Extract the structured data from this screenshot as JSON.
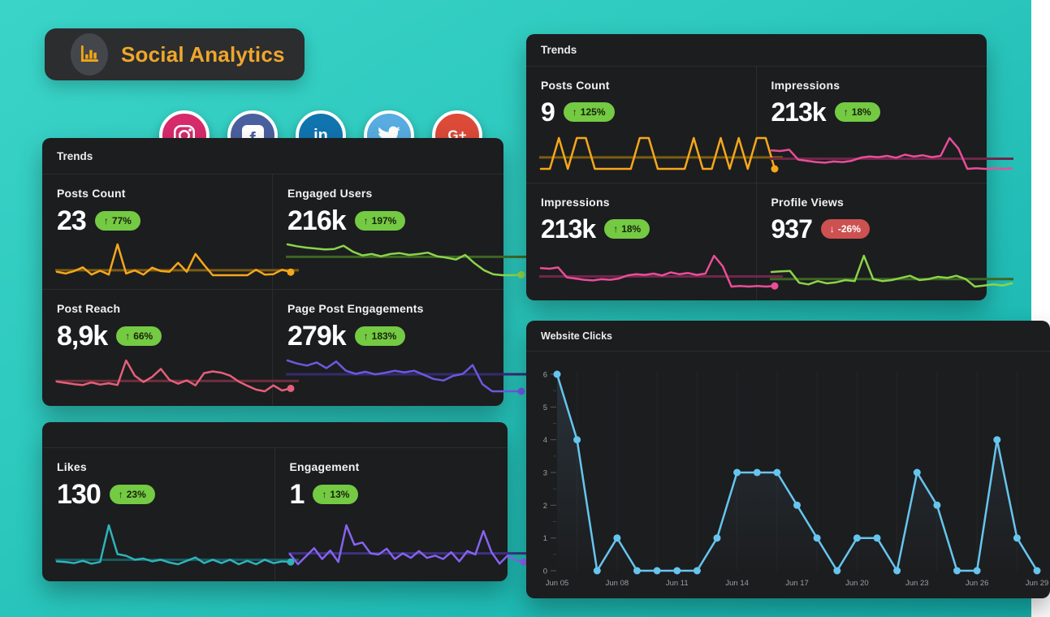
{
  "logo": {
    "title": "Social Analytics"
  },
  "social": {
    "instagram_color": "#d62a6b",
    "facebook_color": "#4a5f9e",
    "linkedin_color": "#1074af",
    "twitter_color": "#58ace0",
    "googleplus_color": "#dc4a38",
    "facebook_glyph": "f",
    "linkedin_glyph": "in",
    "googleplus_glyph": "G+"
  },
  "panels": {
    "left_trends": {
      "title": "Trends",
      "cards": [
        {
          "title": "Posts Count",
          "value": "23",
          "change": "77%",
          "direction": "up",
          "color": "#f6a71b",
          "base": "#7d5c12",
          "dot": true,
          "spark": [
            2,
            1.5,
            2.2,
            3.3,
            1.2,
            2.3,
            1.2,
            10,
            1.5,
            2.4,
            1.2,
            3.2,
            2.2,
            2,
            4.6,
            2,
            7.2,
            4,
            1,
            1,
            1,
            1,
            1,
            2.6,
            1.2,
            1.3,
            2.6,
            1.9
          ]
        },
        {
          "title": "Engaged Users",
          "value": "216k",
          "change": "197%",
          "direction": "up",
          "color": "#8bd44a",
          "base": "#3d6623",
          "dot": true,
          "spark": [
            8,
            7.6,
            7.3,
            7.1,
            6.9,
            7,
            7.7,
            6.4,
            5.6,
            5.9,
            5.4,
            5.9,
            6.1,
            5.7,
            5.9,
            6.2,
            5.4,
            5.1,
            4.7,
            5.7,
            3.9,
            2.4,
            1.5,
            1.3,
            1.3,
            1.4
          ]
        },
        {
          "title": "Post Reach",
          "value": "8,9k",
          "change": "66%",
          "direction": "up",
          "color": "#e4607a",
          "base": "#6e2f3c",
          "dot": true,
          "spark": [
            3,
            2.7,
            2.4,
            2.2,
            2.8,
            2.3,
            2.6,
            2.2,
            8,
            4.4,
            2.9,
            4.1,
            6,
            3.4,
            2.5,
            3.3,
            2.1,
            5,
            5.4,
            5.1,
            4.4,
            3,
            2,
            1.1,
            0.7,
            2.1,
            0.9,
            1.4
          ]
        },
        {
          "title": "Page Post Engagements",
          "value": "279k",
          "change": "183%",
          "direction": "up",
          "color": "#6e57de",
          "base": "#352a6e",
          "dot": true,
          "spark": [
            7,
            6.4,
            6,
            6.6,
            5.5,
            6.8,
            5,
            4.4,
            4.8,
            4.3,
            4.6,
            5,
            4.7,
            5,
            4.2,
            3.4,
            3.1,
            4,
            4.4,
            6.1,
            2.4,
            1,
            1,
            1,
            1
          ]
        }
      ]
    },
    "bottom_left": {
      "cards": [
        {
          "title": "Likes",
          "value": "130",
          "change": "23%",
          "direction": "up",
          "color": "#2fb3b9",
          "base": "#175a5e",
          "dot": true,
          "spark": [
            1.6,
            1.5,
            1.3,
            1.7,
            1.2,
            1.5,
            8,
            2.9,
            2.6,
            1.9,
            2.1,
            1.6,
            1.9,
            1.4,
            1.1,
            1.7,
            2.3,
            1.3,
            1.9,
            1.3,
            1.9,
            1.1,
            1.7,
            1.1,
            1.9,
            1.3,
            1.6,
            1.5
          ]
        },
        {
          "title": "Engagement",
          "value": "1",
          "change": "13%",
          "direction": "up",
          "color": "#8763ef",
          "base": "#3e3180",
          "dot": true,
          "spark": [
            3,
            1.2,
            2.6,
            4,
            2.1,
            3.6,
            1.6,
            8,
            4.6,
            5,
            3.1,
            2.9,
            3.9,
            2.1,
            3.1,
            2.3,
            3.5,
            2.3,
            2.7,
            2.1,
            3.3,
            1.7,
            3.5,
            2.9,
            7,
            3.3,
            1.3,
            2.7,
            1.9,
            1.6
          ]
        }
      ]
    },
    "right_trends": {
      "title": "Trends",
      "cards": [
        {
          "title": "Posts Count",
          "value": "9",
          "change": "125%",
          "direction": "up",
          "color": "#f6a71b",
          "base": "#7d5c12",
          "dot": true,
          "spark": [
            0.5,
            0.5,
            6.5,
            0.5,
            6.5,
            6.5,
            0.5,
            0.5,
            0.5,
            0.5,
            0.5,
            6.5,
            6.5,
            0.5,
            0.5,
            0.5,
            0.5,
            6.5,
            0.5,
            0.5,
            6.5,
            0.5,
            6.5,
            0.5,
            6.5,
            6.5,
            0.5
          ]
        },
        {
          "title": "Impressions",
          "value": "213k",
          "change": "18%",
          "direction": "up",
          "color": "#e94e97",
          "base": "#6e2749",
          "dot": false,
          "spark": [
            4.4,
            4.3,
            4.5,
            2.9,
            2.7,
            2.5,
            2.4,
            2.6,
            2.5,
            2.7,
            3.2,
            3.4,
            3.3,
            3.5,
            3.2,
            3.7,
            3.4,
            3.6,
            3.3,
            3.5,
            6.4,
            4.7,
            1.4,
            1.5,
            1.4,
            1.5,
            1.4,
            1.5
          ]
        },
        {
          "title": "Impressions",
          "value": "213k",
          "change": "18%",
          "direction": "up",
          "color": "#e94e97",
          "base": "#6e2749",
          "dot": true,
          "spark": [
            4.4,
            4.3,
            4.5,
            2.9,
            2.7,
            2.5,
            2.4,
            2.6,
            2.5,
            2.7,
            3.2,
            3.4,
            3.3,
            3.5,
            3.2,
            3.7,
            3.4,
            3.6,
            3.3,
            3.5,
            6.4,
            4.7,
            1.4,
            1.5,
            1.4,
            1.5,
            1.4,
            1.5
          ]
        },
        {
          "title": "Profile Views",
          "value": "937",
          "change": "-26%",
          "direction": "down",
          "color": "#8bd44a",
          "base": "#3d6623",
          "dot": false,
          "spark": [
            4.4,
            4.5,
            4.6,
            2.4,
            2.1,
            2.7,
            2.3,
            2.5,
            2.9,
            2.7,
            7.4,
            3.1,
            2.7,
            2.9,
            3.3,
            3.7,
            2.9,
            3.1,
            3.5,
            3.3,
            3.7,
            3.1,
            1.7,
            1.9,
            2.1,
            1.9,
            2.3
          ]
        }
      ]
    },
    "website_clicks": {
      "title": "Website Clicks"
    }
  },
  "chart_data": {
    "type": "line",
    "title": "Website Clicks",
    "x_tick_labels": [
      "Jun 05",
      "Jun 08",
      "Jun 11",
      "Jun 14",
      "Jun 17",
      "Jun 20",
      "Jun 23",
      "Jun 26",
      "Jun 29"
    ],
    "tick_every": 3,
    "values": [
      6,
      4,
      0,
      1,
      0,
      0,
      0,
      0,
      1,
      3,
      3,
      3,
      2,
      1,
      0,
      1,
      1,
      0,
      3,
      2,
      0,
      0,
      4,
      1,
      0
    ],
    "ylim": [
      0,
      6
    ],
    "y_ticks": [
      0,
      1,
      2,
      3,
      4,
      5,
      6
    ],
    "line_color": "#66c5ee",
    "grid": "vertical-faint",
    "legend": "none"
  }
}
